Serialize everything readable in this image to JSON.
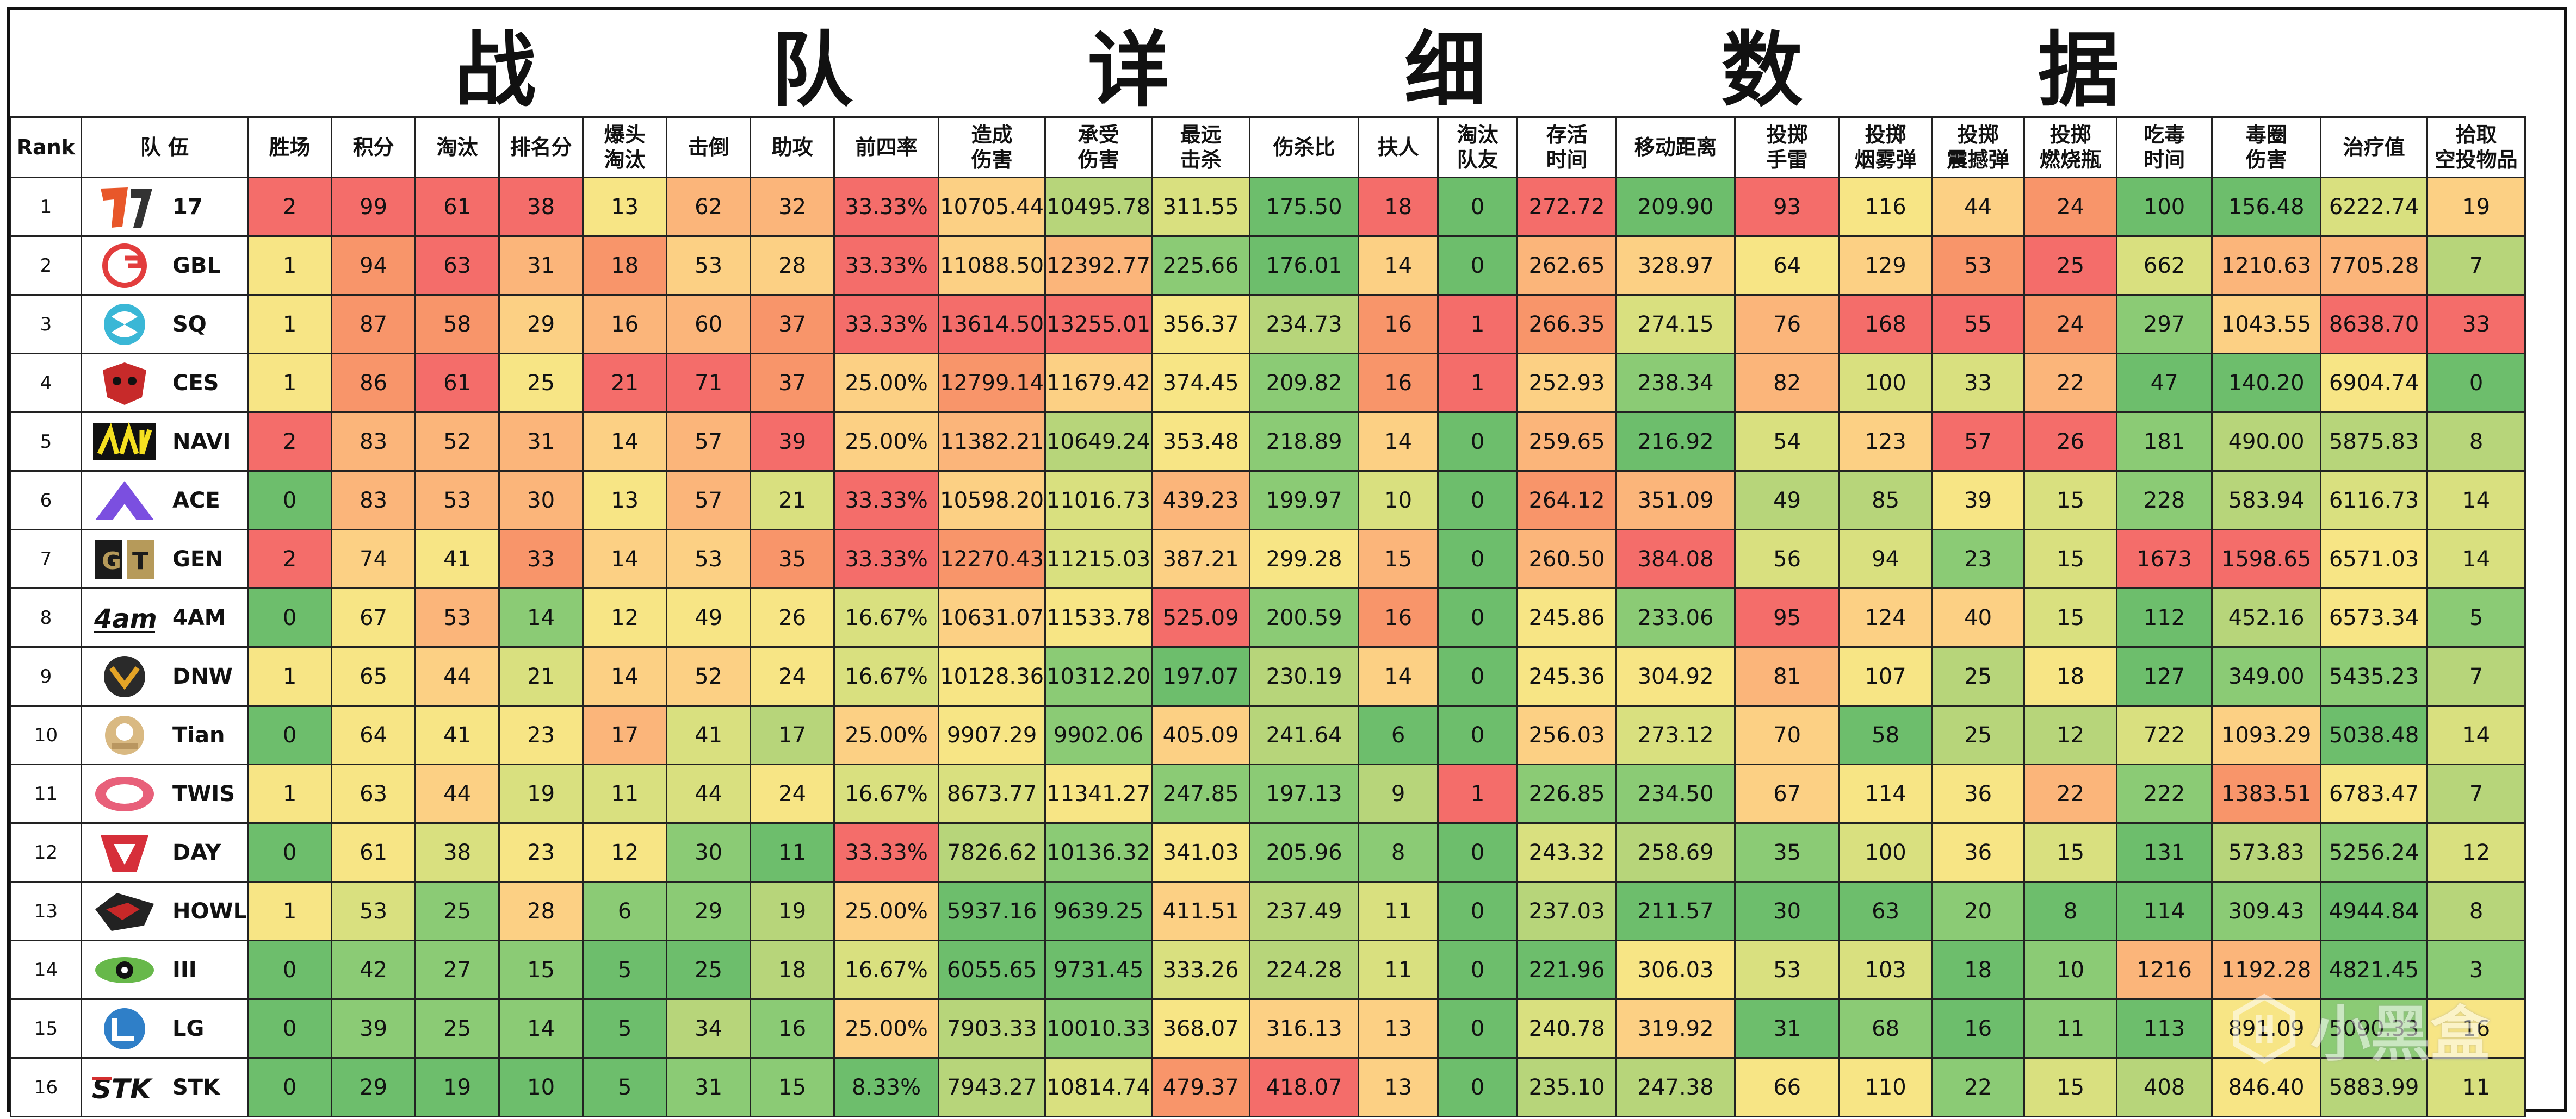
{
  "title": "战 队 详 细 数 据",
  "headers": [
    "Rank",
    "队 伍",
    "胜场",
    "积分",
    "淘汰",
    "排名分",
    "爆头\n淘汰",
    "击倒",
    "助攻",
    "前四率",
    "造成\n伤害",
    "承受\n伤害",
    "最远\n击杀",
    "伤杀比",
    "扶人",
    "淘汰\n队友",
    "存活\n时间",
    "移动距离",
    "投掷\n手雷",
    "投掷\n烟雾弹",
    "投掷\n震撼弹",
    "投掷\n燃烧瓶",
    "吃毒\n时间",
    "毒圈\n伤害",
    "治疗值",
    "拾取\n空投物品"
  ],
  "rows": [
    {
      "rank": "1",
      "team": "17",
      "logo": "logo-17-icon",
      "values": [
        "2",
        "99",
        "61",
        "38",
        "13",
        "62",
        "32",
        "33.33%",
        "10705.44",
        "10495.78",
        "311.55",
        "175.50",
        "18",
        "0",
        "272.72",
        "209.90",
        "93",
        "116",
        "44",
        "24",
        "100",
        "156.48",
        "6222.74",
        "19"
      ]
    },
    {
      "rank": "2",
      "team": "GBL",
      "logo": "logo-gbl-icon",
      "values": [
        "1",
        "94",
        "63",
        "31",
        "18",
        "53",
        "28",
        "33.33%",
        "11088.50",
        "12392.77",
        "225.66",
        "176.01",
        "14",
        "0",
        "262.65",
        "328.97",
        "64",
        "129",
        "53",
        "25",
        "662",
        "1210.63",
        "7705.28",
        "7"
      ]
    },
    {
      "rank": "3",
      "team": "SQ",
      "logo": "logo-sq-icon",
      "values": [
        "1",
        "87",
        "58",
        "29",
        "16",
        "60",
        "37",
        "33.33%",
        "13614.50",
        "13255.01",
        "356.37",
        "234.73",
        "16",
        "1",
        "266.35",
        "274.15",
        "76",
        "168",
        "55",
        "24",
        "297",
        "1043.55",
        "8638.70",
        "33"
      ]
    },
    {
      "rank": "4",
      "team": "CES",
      "logo": "logo-ces-icon",
      "values": [
        "1",
        "86",
        "61",
        "25",
        "21",
        "71",
        "37",
        "25.00%",
        "12799.14",
        "11679.42",
        "374.45",
        "209.82",
        "16",
        "1",
        "252.93",
        "238.34",
        "82",
        "100",
        "33",
        "22",
        "47",
        "140.20",
        "6904.74",
        "0"
      ]
    },
    {
      "rank": "5",
      "team": "NAVI",
      "logo": "logo-navi-icon",
      "values": [
        "2",
        "83",
        "52",
        "31",
        "14",
        "57",
        "39",
        "25.00%",
        "11382.21",
        "10649.24",
        "353.48",
        "218.89",
        "14",
        "0",
        "259.65",
        "216.92",
        "54",
        "123",
        "57",
        "26",
        "181",
        "490.00",
        "5875.83",
        "8"
      ]
    },
    {
      "rank": "6",
      "team": "ACE",
      "logo": "logo-ace-icon",
      "values": [
        "0",
        "83",
        "53",
        "30",
        "13",
        "57",
        "21",
        "33.33%",
        "10598.20",
        "11016.73",
        "439.23",
        "199.97",
        "10",
        "0",
        "264.12",
        "351.09",
        "49",
        "85",
        "39",
        "15",
        "228",
        "583.94",
        "6116.73",
        "14"
      ]
    },
    {
      "rank": "7",
      "team": "GEN",
      "logo": "logo-gen-icon",
      "values": [
        "2",
        "74",
        "41",
        "33",
        "14",
        "53",
        "35",
        "33.33%",
        "12270.43",
        "11215.03",
        "387.21",
        "299.28",
        "15",
        "0",
        "260.50",
        "384.08",
        "56",
        "94",
        "23",
        "15",
        "1673",
        "1598.65",
        "6571.03",
        "14"
      ]
    },
    {
      "rank": "8",
      "team": "4AM",
      "logo": "logo-4am-icon",
      "values": [
        "0",
        "67",
        "53",
        "14",
        "12",
        "49",
        "26",
        "16.67%",
        "10631.07",
        "11533.78",
        "525.09",
        "200.59",
        "16",
        "0",
        "245.86",
        "233.06",
        "95",
        "124",
        "40",
        "15",
        "112",
        "452.16",
        "6573.34",
        "5"
      ]
    },
    {
      "rank": "9",
      "team": "DNW",
      "logo": "logo-dnw-icon",
      "values": [
        "1",
        "65",
        "44",
        "21",
        "14",
        "52",
        "24",
        "16.67%",
        "10128.36",
        "10312.20",
        "197.07",
        "230.19",
        "14",
        "0",
        "245.36",
        "304.92",
        "81",
        "107",
        "25",
        "18",
        "127",
        "349.00",
        "5435.23",
        "7"
      ]
    },
    {
      "rank": "10",
      "team": "Tian",
      "logo": "logo-tian-icon",
      "values": [
        "0",
        "64",
        "41",
        "23",
        "17",
        "41",
        "17",
        "25.00%",
        "9907.29",
        "9902.06",
        "405.09",
        "241.64",
        "6",
        "0",
        "256.03",
        "273.12",
        "70",
        "58",
        "25",
        "12",
        "722",
        "1093.29",
        "5038.48",
        "14"
      ]
    },
    {
      "rank": "11",
      "team": "TWIS",
      "logo": "logo-twis-icon",
      "values": [
        "1",
        "63",
        "44",
        "19",
        "11",
        "44",
        "24",
        "16.67%",
        "8673.77",
        "11341.27",
        "247.85",
        "197.13",
        "9",
        "1",
        "226.85",
        "234.50",
        "67",
        "114",
        "36",
        "22",
        "222",
        "1383.51",
        "6783.47",
        "7"
      ]
    },
    {
      "rank": "12",
      "team": "DAY",
      "logo": "logo-day-icon",
      "values": [
        "0",
        "61",
        "38",
        "23",
        "12",
        "30",
        "11",
        "33.33%",
        "7826.62",
        "10136.32",
        "341.03",
        "205.96",
        "8",
        "0",
        "243.32",
        "258.69",
        "35",
        "100",
        "36",
        "15",
        "131",
        "573.83",
        "5256.24",
        "12"
      ]
    },
    {
      "rank": "13",
      "team": "HOWL",
      "logo": "logo-howl-icon",
      "values": [
        "1",
        "53",
        "25",
        "28",
        "6",
        "29",
        "19",
        "25.00%",
        "5937.16",
        "9639.25",
        "411.51",
        "237.49",
        "11",
        "0",
        "237.03",
        "211.57",
        "30",
        "63",
        "20",
        "8",
        "114",
        "309.43",
        "4944.84",
        "8"
      ]
    },
    {
      "rank": "14",
      "team": "III",
      "logo": "logo-iii-icon",
      "values": [
        "0",
        "42",
        "27",
        "15",
        "5",
        "25",
        "18",
        "16.67%",
        "6055.65",
        "9731.45",
        "333.26",
        "224.28",
        "11",
        "0",
        "221.96",
        "306.03",
        "53",
        "103",
        "18",
        "10",
        "1216",
        "1192.28",
        "4821.45",
        "3"
      ]
    },
    {
      "rank": "15",
      "team": "LG",
      "logo": "logo-lg-icon",
      "values": [
        "0",
        "39",
        "25",
        "14",
        "5",
        "34",
        "16",
        "25.00%",
        "7903.33",
        "10010.33",
        "368.07",
        "316.13",
        "13",
        "0",
        "240.78",
        "319.92",
        "31",
        "68",
        "16",
        "11",
        "113",
        "891.09",
        "5090.33",
        "16"
      ]
    },
    {
      "rank": "16",
      "team": "STK",
      "logo": "logo-stk-icon",
      "values": [
        "0",
        "29",
        "19",
        "10",
        "5",
        "31",
        "15",
        "8.33%",
        "7943.27",
        "10814.74",
        "479.37",
        "418.07",
        "13",
        "0",
        "235.10",
        "247.38",
        "66",
        "110",
        "22",
        "15",
        "408",
        "846.40",
        "5883.99",
        "11"
      ]
    }
  ],
  "colors": {
    "red": "#F46D6A",
    "orange_red": "#F8956A",
    "orange": "#FBB57A",
    "light_orange": "#FCD084",
    "yellow": "#F7E585",
    "yellow_green": "#D9E07F",
    "light_green": "#B7D57A",
    "green": "#8BCB75",
    "dark_green": "#6DBE6C"
  },
  "watermark": "小黑盒"
}
